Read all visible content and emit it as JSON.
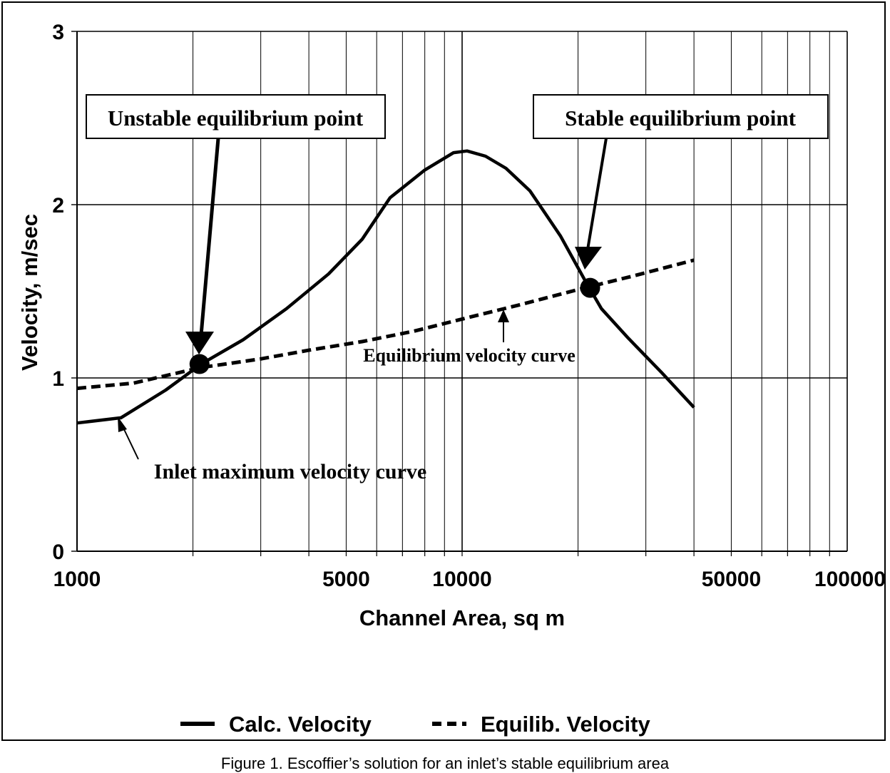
{
  "chart_data": {
    "type": "line",
    "xscale": "log",
    "xlim": [
      1000,
      100000
    ],
    "ylim": [
      0,
      3
    ],
    "xlabel": "Channel Area, sq m",
    "ylabel": "Velocity, m/sec",
    "x_tick_labels": [
      "1000",
      "5000",
      "10000",
      "50000",
      "100000"
    ],
    "x_tick_values": [
      1000,
      5000,
      10000,
      50000,
      100000
    ],
    "y_tick_labels": [
      "0",
      "1",
      "2",
      "3"
    ],
    "y_tick_values": [
      0,
      1,
      2,
      3
    ],
    "grid": true,
    "legend_position": "bottom",
    "series": [
      {
        "name": "Calc. Velocity",
        "style": "solid",
        "x": [
          1000,
          1300,
          1700,
          2100,
          2700,
          3500,
          4500,
          5500,
          6500,
          8000,
          9500,
          10300,
          11500,
          13000,
          15000,
          18000,
          21000,
          23000,
          27000,
          33000,
          40000
        ],
        "y": [
          0.74,
          0.77,
          0.93,
          1.08,
          1.22,
          1.4,
          1.6,
          1.8,
          2.04,
          2.2,
          2.3,
          2.31,
          2.28,
          2.21,
          2.08,
          1.82,
          1.55,
          1.4,
          1.23,
          1.03,
          0.83
        ]
      },
      {
        "name": "Equilib. Velocity",
        "style": "dashed",
        "x": [
          1000,
          1400,
          2100,
          3000,
          4000,
          5500,
          7500,
          10000,
          14000,
          20000,
          28000,
          40000
        ],
        "y": [
          0.94,
          0.97,
          1.06,
          1.11,
          1.16,
          1.21,
          1.27,
          1.34,
          1.42,
          1.51,
          1.59,
          1.68
        ]
      }
    ],
    "points": [
      {
        "name": "Unstable equilibrium point",
        "x": 2080,
        "y": 1.08
      },
      {
        "name": "Stable equilibrium point",
        "x": 21500,
        "y": 1.52
      }
    ],
    "annotations": [
      {
        "text": "Unstable equilibrium point",
        "boxed": true,
        "target_x": 2080,
        "target_y": 1.08
      },
      {
        "text": "Stable equilibrium point",
        "boxed": true,
        "target_x": 21500,
        "target_y": 1.52
      },
      {
        "text": "Equilibrium velocity curve",
        "boxed": false,
        "target_x": 14000,
        "target_y": 1.41
      },
      {
        "text": "Inlet maximum velocity curve",
        "boxed": false,
        "target_x": 1340,
        "target_y": 0.78
      }
    ]
  },
  "caption": "Figure 1.  Escoffier’s solution for an inlet’s stable equilibrium area"
}
